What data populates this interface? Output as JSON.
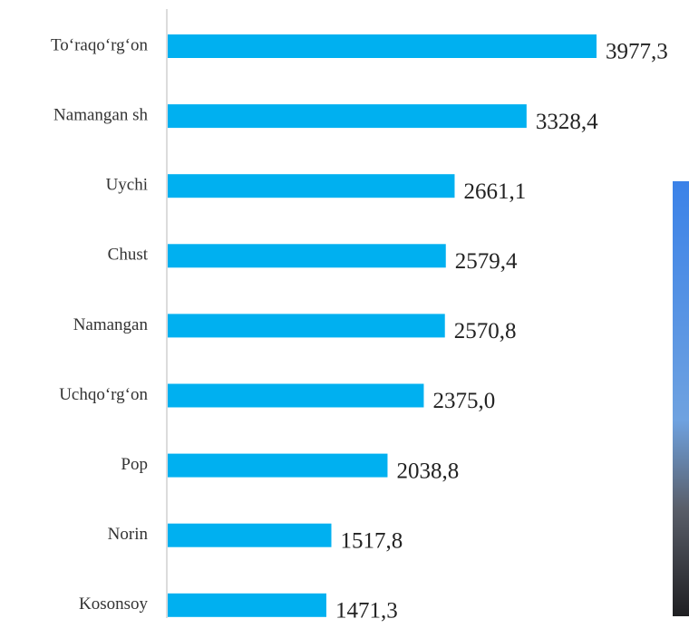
{
  "chart_data": {
    "type": "bar",
    "orientation": "horizontal",
    "categories": [
      "To‘raqo‘rg‘on",
      "Namangan sh",
      "Uychi",
      "Chust",
      "Namangan",
      "Uchqo‘rg‘on",
      "Pop",
      "Norin",
      "Kosonsoy"
    ],
    "values": [
      3977.3,
      3328.4,
      2661.1,
      2579.4,
      2570.8,
      2375.0,
      2038.8,
      1517.8,
      1471.3
    ],
    "value_labels": [
      "3977,3",
      "3328,4",
      "2661,1",
      "2579,4",
      "2570,8",
      "2375,0",
      "2038,8",
      "1517,8",
      "1471,3"
    ],
    "color": "#00b0f0"
  }
}
